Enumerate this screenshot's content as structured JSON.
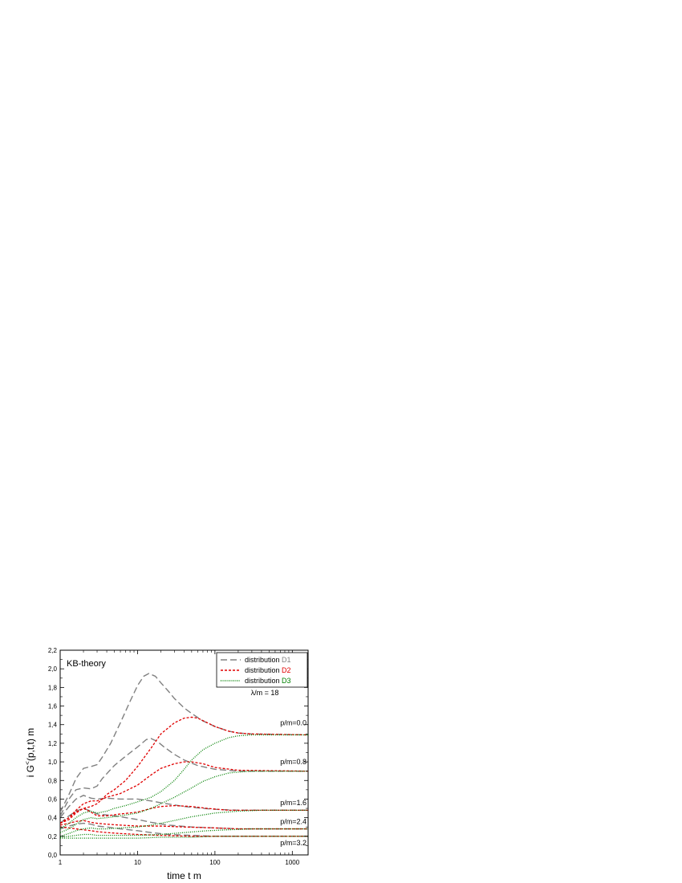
{
  "chart_data": {
    "type": "line",
    "title": "KB-theory",
    "xlabel": "time  t m",
    "ylabel": "i G<(p,t,t)  m",
    "ylabel_main": "i G",
    "ylabel_sup": "<",
    "ylabel_rest": "(p,t,t)  m",
    "x_scale": "log",
    "xlim": [
      1,
      1600
    ],
    "ylim": [
      0.0,
      2.2
    ],
    "x_ticks": [
      1,
      10,
      100,
      1000
    ],
    "x_tick_labels": [
      "1",
      "10",
      "100",
      "1000"
    ],
    "y_ticks": [
      0.0,
      0.2,
      0.4,
      0.6,
      0.8,
      1.0,
      1.2,
      1.4,
      1.6,
      1.8,
      2.0,
      2.2
    ],
    "y_tick_labels": [
      "0,0",
      "0,2",
      "0,4",
      "0,6",
      "0,8",
      "1,0",
      "1,2",
      "1,4",
      "1,6",
      "1,8",
      "2,0",
      "2,2"
    ],
    "grid": false,
    "legend_position": "top-right",
    "legend": [
      {
        "prefix": "distribution",
        "tag": "D1",
        "color": "#808080",
        "dash": "8,4"
      },
      {
        "prefix": "distribution",
        "tag": "D2",
        "color": "#e00000",
        "dash": "3,2"
      },
      {
        "prefix": "distribution",
        "tag": "D3",
        "color": "#008000",
        "dash": "1,1.5"
      }
    ],
    "parameter_label": "λ/m = 18",
    "curve_labels": [
      {
        "text": "p/m=0.0",
        "y": 1.42
      },
      {
        "text": "p/m=0.8",
        "y": 1.0
      },
      {
        "text": "p/m=1.6",
        "y": 0.56
      },
      {
        "text": "p/m=2.4",
        "y": 0.36
      },
      {
        "text": "p/m=3.2",
        "y": 0.13
      }
    ],
    "series": [
      {
        "group": "D1",
        "p": "0.0",
        "points": [
          [
            1,
            0.46
          ],
          [
            1.3,
            0.65
          ],
          [
            1.6,
            0.82
          ],
          [
            2,
            0.93
          ],
          [
            2.5,
            0.95
          ],
          [
            3,
            0.97
          ],
          [
            3.5,
            1.05
          ],
          [
            4.5,
            1.2
          ],
          [
            6,
            1.42
          ],
          [
            8,
            1.65
          ],
          [
            10,
            1.82
          ],
          [
            12,
            1.92
          ],
          [
            14,
            1.95
          ],
          [
            17,
            1.92
          ],
          [
            20,
            1.85
          ],
          [
            25,
            1.76
          ],
          [
            30,
            1.68
          ],
          [
            40,
            1.58
          ],
          [
            50,
            1.52
          ],
          [
            70,
            1.44
          ],
          [
            100,
            1.38
          ],
          [
            150,
            1.33
          ],
          [
            200,
            1.31
          ],
          [
            300,
            1.3
          ],
          [
            1600,
            1.29
          ]
        ]
      },
      {
        "group": "D1",
        "p": "0.8",
        "points": [
          [
            1,
            0.42
          ],
          [
            1.3,
            0.6
          ],
          [
            1.6,
            0.7
          ],
          [
            2,
            0.72
          ],
          [
            2.5,
            0.71
          ],
          [
            3,
            0.74
          ],
          [
            3.5,
            0.82
          ],
          [
            5,
            0.96
          ],
          [
            7,
            1.06
          ],
          [
            10,
            1.16
          ],
          [
            13,
            1.24
          ],
          [
            15,
            1.25
          ],
          [
            18,
            1.22
          ],
          [
            22,
            1.16
          ],
          [
            30,
            1.08
          ],
          [
            40,
            1.02
          ],
          [
            60,
            0.96
          ],
          [
            100,
            0.92
          ],
          [
            200,
            0.9
          ],
          [
            1600,
            0.9
          ]
        ]
      },
      {
        "group": "D1",
        "p": "1.6",
        "points": [
          [
            1,
            0.4
          ],
          [
            1.3,
            0.52
          ],
          [
            1.6,
            0.6
          ],
          [
            2,
            0.64
          ],
          [
            2.5,
            0.61
          ],
          [
            3,
            0.6
          ],
          [
            4,
            0.61
          ],
          [
            6,
            0.6
          ],
          [
            10,
            0.6
          ],
          [
            15,
            0.58
          ],
          [
            20,
            0.56
          ],
          [
            40,
            0.52
          ],
          [
            70,
            0.5
          ],
          [
            100,
            0.49
          ],
          [
            200,
            0.48
          ],
          [
            1600,
            0.48
          ]
        ]
      },
      {
        "group": "D1",
        "p": "2.4",
        "points": [
          [
            1,
            0.34
          ],
          [
            1.3,
            0.42
          ],
          [
            1.6,
            0.47
          ],
          [
            2,
            0.5
          ],
          [
            2.5,
            0.47
          ],
          [
            3,
            0.44
          ],
          [
            4,
            0.43
          ],
          [
            6,
            0.41
          ],
          [
            10,
            0.38
          ],
          [
            15,
            0.35
          ],
          [
            25,
            0.32
          ],
          [
            50,
            0.3
          ],
          [
            100,
            0.29
          ],
          [
            200,
            0.28
          ],
          [
            1600,
            0.28
          ]
        ]
      },
      {
        "group": "D1",
        "p": "3.2",
        "points": [
          [
            1,
            0.28
          ],
          [
            1.3,
            0.31
          ],
          [
            1.6,
            0.33
          ],
          [
            2,
            0.34
          ],
          [
            2.5,
            0.33
          ],
          [
            3,
            0.31
          ],
          [
            4,
            0.3
          ],
          [
            6,
            0.28
          ],
          [
            10,
            0.26
          ],
          [
            15,
            0.24
          ],
          [
            25,
            0.22
          ],
          [
            50,
            0.21
          ],
          [
            100,
            0.2
          ],
          [
            1600,
            0.2
          ]
        ]
      },
      {
        "group": "D2",
        "p": "0.0",
        "points": [
          [
            1,
            0.34
          ],
          [
            1.3,
            0.38
          ],
          [
            1.6,
            0.45
          ],
          [
            2,
            0.5
          ],
          [
            2.5,
            0.52
          ],
          [
            3,
            0.55
          ],
          [
            3.5,
            0.6
          ],
          [
            4,
            0.65
          ],
          [
            5,
            0.7
          ],
          [
            7,
            0.8
          ],
          [
            10,
            0.95
          ],
          [
            15,
            1.15
          ],
          [
            20,
            1.3
          ],
          [
            30,
            1.42
          ],
          [
            40,
            1.47
          ],
          [
            50,
            1.48
          ],
          [
            60,
            1.47
          ],
          [
            80,
            1.42
          ],
          [
            100,
            1.38
          ],
          [
            150,
            1.33
          ],
          [
            200,
            1.31
          ],
          [
            300,
            1.3
          ],
          [
            1600,
            1.29
          ]
        ]
      },
      {
        "group": "D2",
        "p": "0.8",
        "points": [
          [
            1,
            0.34
          ],
          [
            1.3,
            0.4
          ],
          [
            1.6,
            0.48
          ],
          [
            2,
            0.55
          ],
          [
            2.5,
            0.58
          ],
          [
            3,
            0.58
          ],
          [
            3.5,
            0.6
          ],
          [
            4,
            0.62
          ],
          [
            6,
            0.66
          ],
          [
            10,
            0.75
          ],
          [
            15,
            0.86
          ],
          [
            20,
            0.93
          ],
          [
            30,
            0.98
          ],
          [
            40,
            1.0
          ],
          [
            50,
            1.0
          ],
          [
            70,
            0.98
          ],
          [
            100,
            0.94
          ],
          [
            200,
            0.91
          ],
          [
            1600,
            0.9
          ]
        ]
      },
      {
        "group": "D2",
        "p": "1.6",
        "points": [
          [
            1,
            0.34
          ],
          [
            1.3,
            0.4
          ],
          [
            1.6,
            0.46
          ],
          [
            2,
            0.5
          ],
          [
            2.5,
            0.46
          ],
          [
            3,
            0.42
          ],
          [
            4,
            0.42
          ],
          [
            6,
            0.44
          ],
          [
            10,
            0.46
          ],
          [
            15,
            0.5
          ],
          [
            20,
            0.52
          ],
          [
            30,
            0.53
          ],
          [
            50,
            0.52
          ],
          [
            80,
            0.5
          ],
          [
            150,
            0.48
          ],
          [
            1600,
            0.48
          ]
        ]
      },
      {
        "group": "D2",
        "p": "2.4",
        "points": [
          [
            1,
            0.32
          ],
          [
            1.3,
            0.34
          ],
          [
            1.6,
            0.36
          ],
          [
            2,
            0.37
          ],
          [
            2.5,
            0.35
          ],
          [
            3,
            0.34
          ],
          [
            4,
            0.33
          ],
          [
            6,
            0.32
          ],
          [
            10,
            0.31
          ],
          [
            20,
            0.31
          ],
          [
            40,
            0.3
          ],
          [
            100,
            0.29
          ],
          [
            200,
            0.28
          ],
          [
            1600,
            0.28
          ]
        ]
      },
      {
        "group": "D2",
        "p": "3.2",
        "points": [
          [
            1,
            0.3
          ],
          [
            1.3,
            0.29
          ],
          [
            1.6,
            0.28
          ],
          [
            2,
            0.27
          ],
          [
            2.5,
            0.26
          ],
          [
            3,
            0.25
          ],
          [
            4,
            0.24
          ],
          [
            6,
            0.23
          ],
          [
            10,
            0.22
          ],
          [
            20,
            0.21
          ],
          [
            50,
            0.2
          ],
          [
            1600,
            0.2
          ]
        ]
      },
      {
        "group": "D3",
        "p": "0.0",
        "points": [
          [
            1,
            0.28
          ],
          [
            1.3,
            0.34
          ],
          [
            1.6,
            0.4
          ],
          [
            2,
            0.45
          ],
          [
            2.5,
            0.47
          ],
          [
            3,
            0.45
          ],
          [
            4,
            0.47
          ],
          [
            5,
            0.5
          ],
          [
            7,
            0.53
          ],
          [
            10,
            0.57
          ],
          [
            15,
            0.62
          ],
          [
            20,
            0.68
          ],
          [
            30,
            0.8
          ],
          [
            40,
            0.92
          ],
          [
            50,
            1.02
          ],
          [
            70,
            1.13
          ],
          [
            100,
            1.2
          ],
          [
            150,
            1.26
          ],
          [
            200,
            1.28
          ],
          [
            300,
            1.29
          ],
          [
            1600,
            1.29
          ]
        ]
      },
      {
        "group": "D3",
        "p": "0.8",
        "points": [
          [
            1,
            0.24
          ],
          [
            1.3,
            0.28
          ],
          [
            1.6,
            0.33
          ],
          [
            2,
            0.38
          ],
          [
            2.5,
            0.4
          ],
          [
            3,
            0.39
          ],
          [
            4,
            0.4
          ],
          [
            6,
            0.42
          ],
          [
            10,
            0.45
          ],
          [
            15,
            0.5
          ],
          [
            20,
            0.55
          ],
          [
            30,
            0.62
          ],
          [
            50,
            0.72
          ],
          [
            70,
            0.79
          ],
          [
            100,
            0.84
          ],
          [
            150,
            0.88
          ],
          [
            200,
            0.89
          ],
          [
            300,
            0.9
          ],
          [
            1600,
            0.9
          ]
        ]
      },
      {
        "group": "D3",
        "p": "1.6",
        "points": [
          [
            1,
            0.2
          ],
          [
            1.3,
            0.23
          ],
          [
            1.6,
            0.26
          ],
          [
            2,
            0.28
          ],
          [
            2.5,
            0.29
          ],
          [
            3,
            0.28
          ],
          [
            4,
            0.28
          ],
          [
            6,
            0.29
          ],
          [
            10,
            0.3
          ],
          [
            15,
            0.32
          ],
          [
            20,
            0.34
          ],
          [
            30,
            0.37
          ],
          [
            50,
            0.41
          ],
          [
            100,
            0.45
          ],
          [
            200,
            0.47
          ],
          [
            400,
            0.48
          ],
          [
            1600,
            0.48
          ]
        ]
      },
      {
        "group": "D3",
        "p": "2.4",
        "points": [
          [
            1,
            0.19
          ],
          [
            1.3,
            0.2
          ],
          [
            1.6,
            0.21
          ],
          [
            2,
            0.22
          ],
          [
            2.5,
            0.22
          ],
          [
            3,
            0.21
          ],
          [
            4,
            0.21
          ],
          [
            6,
            0.21
          ],
          [
            10,
            0.21
          ],
          [
            20,
            0.22
          ],
          [
            40,
            0.24
          ],
          [
            80,
            0.26
          ],
          [
            150,
            0.27
          ],
          [
            300,
            0.28
          ],
          [
            1600,
            0.28
          ]
        ]
      },
      {
        "group": "D3",
        "p": "3.2",
        "points": [
          [
            1,
            0.18
          ],
          [
            1.3,
            0.18
          ],
          [
            1.6,
            0.18
          ],
          [
            2,
            0.18
          ],
          [
            3,
            0.18
          ],
          [
            5,
            0.18
          ],
          [
            10,
            0.18
          ],
          [
            20,
            0.19
          ],
          [
            50,
            0.19
          ],
          [
            100,
            0.2
          ],
          [
            1600,
            0.2
          ]
        ]
      }
    ]
  }
}
